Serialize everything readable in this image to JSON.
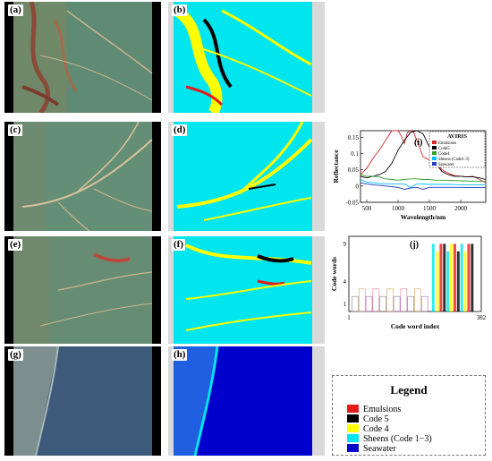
{
  "panels": {
    "a": "(a)",
    "b": "(b)",
    "c": "(c)",
    "d": "(d)",
    "e": "(e)",
    "f": "(f)",
    "g": "(g)",
    "h": "(h)"
  },
  "colors": {
    "emulsions": "#e41a1c",
    "code5": "#000000",
    "code4": "#ffff00",
    "sheens": "#00e5ee",
    "seawater": "#0000cd"
  },
  "legend": {
    "title": "Legend",
    "items": [
      "Emulsions",
      "Code 5",
      "Code 4",
      "Sheens (Code 1−3)",
      "Seawater"
    ]
  },
  "chart_data": [
    {
      "type": "line",
      "panel_label": "(i)",
      "title": "AVIRIS",
      "xlabel": "Wavelength/nm",
      "ylabel": "Reflectance",
      "xlim": [
        400,
        2400
      ],
      "ylim": [
        -0.05,
        0.17
      ],
      "xticks": [
        "500",
        "1000",
        "1500",
        "2000"
      ],
      "yticks": [
        "0.15",
        "0.1",
        "0.05",
        "0",
        "-0.05"
      ],
      "legend": [
        "Emulsions",
        "Code5",
        "Code4",
        "Sheens (Code1-3)",
        "Seawater"
      ],
      "series": [
        {
          "name": "Emulsions",
          "color": "#d62728",
          "x": [
            400,
            500,
            600,
            700,
            800,
            900,
            1000,
            1050,
            1100,
            1150,
            1200,
            1250,
            1300,
            1400,
            1500,
            1600,
            1700,
            1800,
            1900,
            2000,
            2100,
            2200,
            2300,
            2400
          ],
          "y": [
            0.035,
            0.055,
            0.085,
            0.11,
            0.14,
            0.17,
            0.17,
            0.155,
            0.13,
            0.165,
            0.17,
            0.165,
            0.14,
            0.09,
            0.08,
            0.07,
            0.05,
            0.04,
            0.032,
            0.03,
            0.028,
            0.03,
            0.02,
            0.01
          ]
        },
        {
          "name": "Code5",
          "color": "#000000",
          "x": [
            400,
            500,
            600,
            700,
            800,
            900,
            1000,
            1100,
            1200,
            1300,
            1400,
            1500,
            1600,
            1700,
            1800,
            1900,
            2000,
            2100,
            2200,
            2300,
            2400
          ],
          "y": [
            0.03,
            0.025,
            0.03,
            0.035,
            0.045,
            0.07,
            0.11,
            0.14,
            0.165,
            0.17,
            0.16,
            0.12,
            0.07,
            0.045,
            0.035,
            0.03,
            0.03,
            0.028,
            0.028,
            0.025,
            0.02
          ]
        },
        {
          "name": "Code4",
          "color": "#2ca02c",
          "x": [
            400,
            500,
            600,
            700,
            800,
            900,
            1000,
            1100,
            1200,
            1300,
            1400,
            1500,
            1600,
            1800,
            2000,
            2200,
            2400
          ],
          "y": [
            0.035,
            0.03,
            0.03,
            0.028,
            0.022,
            0.02,
            0.018,
            0.02,
            0.022,
            0.022,
            0.02,
            0.02,
            0.018,
            0.018,
            0.016,
            0.015,
            0.014
          ]
        },
        {
          "name": "Sheens (Code1-3)",
          "color": "#00bfff",
          "x": [
            400,
            500,
            600,
            700,
            800,
            900,
            1000,
            1100,
            1200,
            1300,
            1400,
            1500,
            1600,
            1800,
            2000,
            2200,
            2400
          ],
          "y": [
            0.02,
            0.012,
            0.01,
            0.008,
            0.006,
            0.006,
            0.006,
            0.006,
            -0.004,
            0.006,
            0.006,
            0.005,
            0.005,
            0.005,
            0.004,
            0.004,
            0.004
          ]
        },
        {
          "name": "Seawater",
          "color": "#1f3fbf",
          "x": [
            400,
            500,
            600,
            700,
            800,
            900,
            1000,
            1100,
            1200,
            1300,
            1400,
            1500,
            1600,
            1800,
            2000,
            2200,
            2400
          ],
          "y": [
            0.01,
            0.006,
            0.004,
            0.002,
            0.0,
            -0.002,
            -0.004,
            -0.01,
            -0.006,
            -0.004,
            -0.01,
            -0.004,
            -0.004,
            -0.004,
            -0.004,
            -0.005,
            -0.005
          ]
        }
      ]
    },
    {
      "type": "bar",
      "panel_label": "(j)",
      "xlabel": "Code word index",
      "ylabel": "Code words",
      "xlim": [
        1,
        382
      ],
      "ylim": [
        0,
        10
      ],
      "xticks": [
        "1",
        "382"
      ],
      "yticks": [
        "1",
        "4",
        "9"
      ]
    }
  ]
}
